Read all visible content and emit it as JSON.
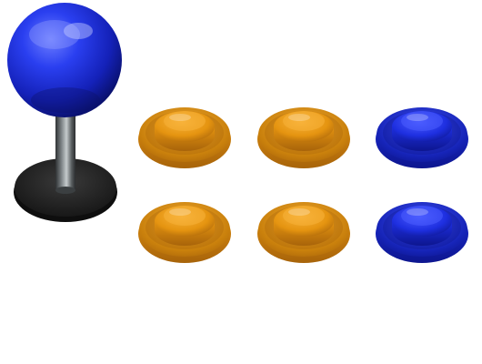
{
  "scene": {
    "background": "#ffffff",
    "joystick": {
      "ball_color": "#1a2fd6",
      "shaft_color": "#5b6063",
      "base_color": "#2a2a2a"
    },
    "buttons": [
      {
        "id": "btn-1",
        "color": "orange",
        "row": 1,
        "col": 1
      },
      {
        "id": "btn-2",
        "color": "orange",
        "row": 1,
        "col": 2
      },
      {
        "id": "btn-3",
        "color": "blue",
        "row": 1,
        "col": 3
      },
      {
        "id": "btn-4",
        "color": "orange",
        "row": 2,
        "col": 1
      },
      {
        "id": "btn-5",
        "color": "orange",
        "row": 2,
        "col": 2
      },
      {
        "id": "btn-6",
        "color": "blue",
        "row": 2,
        "col": 3
      }
    ],
    "palette": {
      "orange": {
        "light": "#f7b23a",
        "mid": "#e59410",
        "dark": "#a8640a",
        "rim": "#c9800c"
      },
      "blue": {
        "light": "#4b5cff",
        "mid": "#1e2fe0",
        "dark": "#0d168f",
        "rim": "#1624b8"
      }
    }
  }
}
